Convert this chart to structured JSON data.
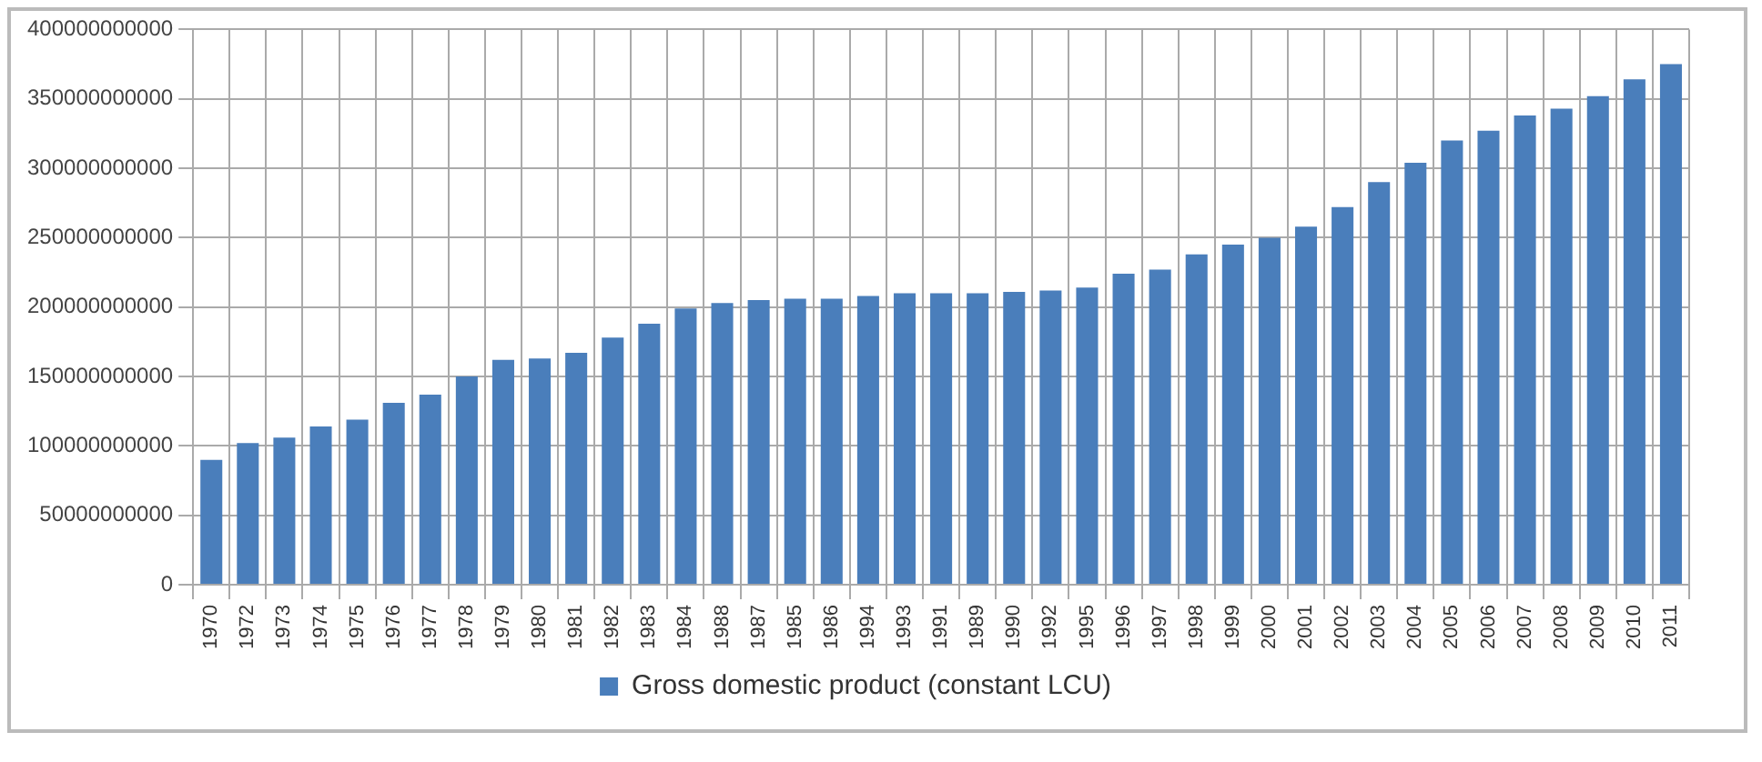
{
  "chart_data": {
    "type": "bar",
    "categories": [
      "1970",
      "1972",
      "1973",
      "1974",
      "1975",
      "1976",
      "1977",
      "1978",
      "1979",
      "1980",
      "1981",
      "1982",
      "1983",
      "1984",
      "1988",
      "1987",
      "1985",
      "1986",
      "1994",
      "1993",
      "1991",
      "1989",
      "1990",
      "1992",
      "1995",
      "1996",
      "1997",
      "1998",
      "1999",
      "2000",
      "2001",
      "2002",
      "2003",
      "2004",
      "2005",
      "2006",
      "2007",
      "2008",
      "2009",
      "2010",
      "2011"
    ],
    "series": [
      {
        "name": "Gross domestic product (constant LCU)",
        "color": "#4a7ebb",
        "values": [
          90000000000,
          102000000000,
          106000000000,
          114000000000,
          119000000000,
          131000000000,
          137000000000,
          150000000000,
          162000000000,
          163000000000,
          167000000000,
          178000000000,
          188000000000,
          199000000000,
          203000000000,
          205000000000,
          206000000000,
          206000000000,
          208000000000,
          210000000000,
          210000000000,
          210000000000,
          211000000000,
          212000000000,
          214000000000,
          224000000000,
          227000000000,
          238000000000,
          245000000000,
          250000000000,
          258000000000,
          272000000000,
          290000000000,
          304000000000,
          320000000000,
          327000000000,
          338000000000,
          343000000000,
          352000000000,
          364000000000,
          375000000000
        ]
      }
    ],
    "ylim": [
      0,
      400000000000
    ],
    "yticks": [
      0,
      50000000000,
      100000000000,
      150000000000,
      200000000000,
      250000000000,
      300000000000,
      350000000000,
      400000000000
    ],
    "grid": true,
    "legend": "bottom"
  }
}
